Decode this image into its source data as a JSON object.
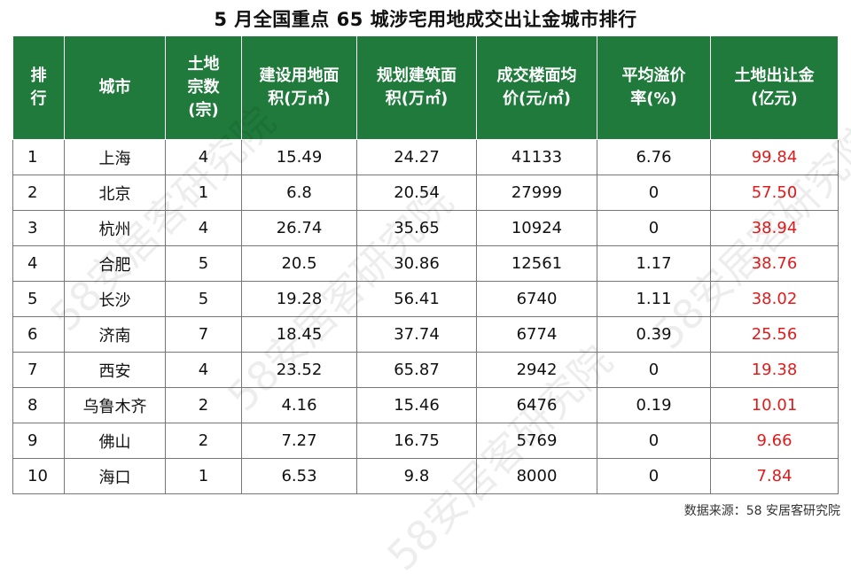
{
  "title": "5 月全国重点 65 城涉宅用地成交出让金城市排行",
  "headers": [
    "排\n行",
    "城市",
    "土地\n宗数\n(宗)",
    "建设用地面\n积(万㎡)",
    "规划建筑面\n积(万㎡)",
    "成交楼面均\n价(元/㎡)",
    "平均溢价\n率(%)",
    "土地出让金\n(亿元)"
  ],
  "rows": [
    [
      "1",
      "上海",
      "4",
      "15.49",
      "24.27",
      "41133",
      "6.76",
      "99.84"
    ],
    [
      "2",
      "北京",
      "1",
      "6.8",
      "20.54",
      "27999",
      "0",
      "57.50"
    ],
    [
      "3",
      "杭州",
      "4",
      "26.74",
      "35.65",
      "10924",
      "0",
      "38.94"
    ],
    [
      "4",
      "合肥",
      "5",
      "20.5",
      "30.86",
      "12561",
      "1.17",
      "38.76"
    ],
    [
      "5",
      "长沙",
      "5",
      "19.28",
      "56.41",
      "6740",
      "1.11",
      "38.02"
    ],
    [
      "6",
      "济南",
      "7",
      "18.45",
      "37.74",
      "6774",
      "0.39",
      "25.56"
    ],
    [
      "7",
      "西安",
      "4",
      "23.52",
      "65.87",
      "2942",
      "0",
      "19.38"
    ],
    [
      "8",
      "乌鲁木齐",
      "2",
      "4.16",
      "15.46",
      "6476",
      "0.19",
      "10.01"
    ],
    [
      "9",
      "佛山",
      "2",
      "7.27",
      "16.75",
      "5769",
      "0",
      "9.66"
    ],
    [
      "10",
      "海口",
      "1",
      "6.53",
      "9.8",
      "8000",
      "0",
      "7.84"
    ]
  ],
  "source": "数据来源：58 安居客研究院",
  "watermark": "58安居客研究院",
  "colors": {
    "header_bg": "#1f7a3c",
    "header_text": "#ffffff",
    "amount_text": "#e01b1b"
  }
}
